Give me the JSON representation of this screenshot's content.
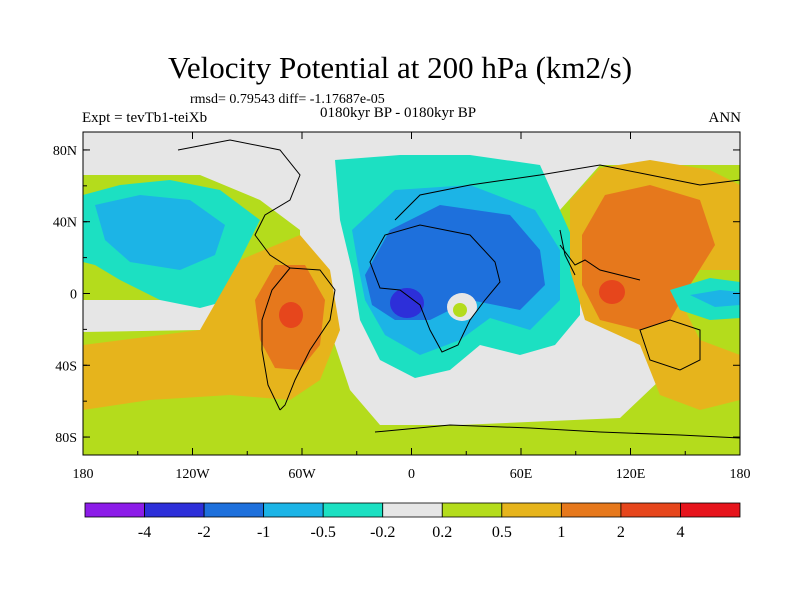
{
  "title": "Velocity Potential at 200 hPa (km2/s)",
  "stats": "rmsd= 0.79543 diff= -1.17687e-05",
  "experiment": "Expt = tevTb1-teiXb",
  "period": "0180kyr BP - 0180kyr BP",
  "season": "ANN",
  "chart_data": {
    "type": "contour-map",
    "variable": "Velocity Potential",
    "level": "200 hPa",
    "units": "km2/s",
    "projection": "cylindrical equidistant",
    "lon_range": [
      -180,
      180
    ],
    "lat_range": [
      -90,
      90
    ],
    "x_ticks": [
      {
        "value": -180,
        "label": "180"
      },
      {
        "value": -120,
        "label": "120W"
      },
      {
        "value": -60,
        "label": "60W"
      },
      {
        "value": 0,
        "label": "0"
      },
      {
        "value": 60,
        "label": "60E"
      },
      {
        "value": 120,
        "label": "120E"
      },
      {
        "value": 180,
        "label": "180"
      }
    ],
    "y_ticks": [
      {
        "value": 80,
        "label": "80N"
      },
      {
        "value": 40,
        "label": "40N"
      },
      {
        "value": 0,
        "label": "0"
      },
      {
        "value": -40,
        "label": "40S"
      },
      {
        "value": -80,
        "label": "80S"
      }
    ],
    "levels": [
      -4,
      -2,
      -1,
      -0.5,
      -0.2,
      0.2,
      0.5,
      1,
      2,
      4
    ],
    "level_labels": [
      "-4",
      "-2",
      "-1",
      "-0.5",
      "-0.2",
      "0.2",
      "0.5",
      "1",
      "2",
      "4"
    ],
    "colors": [
      "#8c1ce8",
      "#2d2fd9",
      "#1e70dc",
      "#1cb4e6",
      "#1ce0c2",
      "#e6e6e6",
      "#b4dc1c",
      "#e6b41c",
      "#e6781c",
      "#e6461c",
      "#e6141c"
    ],
    "features": [
      {
        "name": "Positive anomaly South America",
        "center": [
          -60,
          -10
        ],
        "max_value": 2
      },
      {
        "name": "Positive anomaly Maritime Continent",
        "center": [
          110,
          5
        ],
        "max_value": 4
      },
      {
        "name": "Negative anomaly Gulf of Guinea",
        "center": [
          -3,
          -3
        ],
        "min_value": -2
      },
      {
        "name": "Negative anomaly North Africa / Eurasia",
        "center": [
          30,
          20
        ],
        "min_value": -1
      },
      {
        "name": "Negative anomaly North Pacific",
        "center": [
          -150,
          40
        ],
        "min_value": -0.5
      }
    ]
  }
}
